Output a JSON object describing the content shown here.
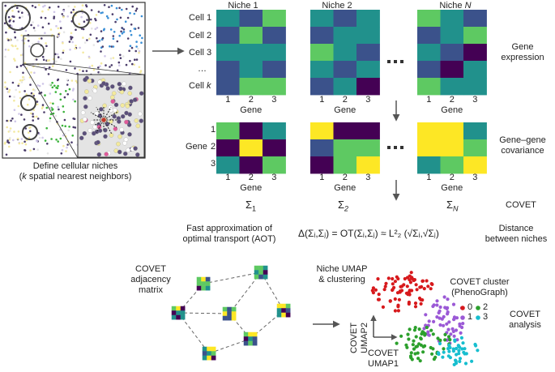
{
  "panel_top_left": {
    "caption_line1": "Define cellular niches",
    "caption_k": "k",
    "caption_line2_rest": " spatial nearest neighbors)",
    "caption_paren": "("
  },
  "gene_expression": {
    "niche1_title": "Niche 1",
    "niche2_title": "Niche 2",
    "nicheN_prefix": "Niche ",
    "nicheN_suffix": "N",
    "cell_labels": [
      "Cell 1",
      "Cell 2",
      "Cell 3",
      "…",
      "Cell "
    ],
    "cell_k": "k",
    "gene_ticks": [
      "1",
      "2",
      "3"
    ],
    "gene_axis": "Gene",
    "ellipsis": "■ ■ ■",
    "side_label_1": "Gene",
    "side_label_2": "expression"
  },
  "covariance": {
    "row_ticks": [
      "1",
      "2",
      "3"
    ],
    "row_axis": "Gene",
    "gene_ticks": [
      "1",
      "2",
      "3"
    ],
    "gene_axis": "Gene",
    "side_label_1": "Gene–gene",
    "side_label_2": "covariance",
    "sigma_1": "Σ",
    "sigma_1_sub": "1",
    "sigma_2": "Σ",
    "sigma_2_sub": "2",
    "sigma_N": "Σ",
    "sigma_N_sub": "N",
    "covet": "COVET"
  },
  "distance": {
    "aot_line1": "Fast approximation of",
    "aot_line2": "optimal transport (AOT)",
    "formula": "Δ(Σᵢ,Σⱼ) = OT(Σᵢ,Σⱼ) ≈ L²₂ (√Σᵢ,√Σⱼ)",
    "label_line1": "Distance",
    "label_line2": "between niches"
  },
  "bottom": {
    "adj_line1": "COVET",
    "adj_line2": "adjacency",
    "adj_line3": "matrix",
    "umap_title_1": "Niche UMAP",
    "umap_title_2": "& clustering",
    "cluster_title_1": "COVET cluster",
    "cluster_title_2": "(PhenoGraph)",
    "legend": [
      "0",
      "2",
      "1",
      "3"
    ],
    "axis_y_1": "COVET",
    "axis_y_2": "UMAP2",
    "axis_x_1": "COVET",
    "axis_x_2": "UMAP1",
    "analysis_1": "COVET",
    "analysis_2": "analysis"
  },
  "colors": {
    "viridis_dark": "#440154",
    "viridis_blue": "#3b528b",
    "viridis_teal": "#21918c",
    "viridis_green": "#5ec962",
    "viridis_yellow": "#fde725",
    "cluster_0": "#d7191c",
    "cluster_1": "#9b59d6",
    "cluster_2": "#2ca02c",
    "cluster_3": "#17becf"
  }
}
